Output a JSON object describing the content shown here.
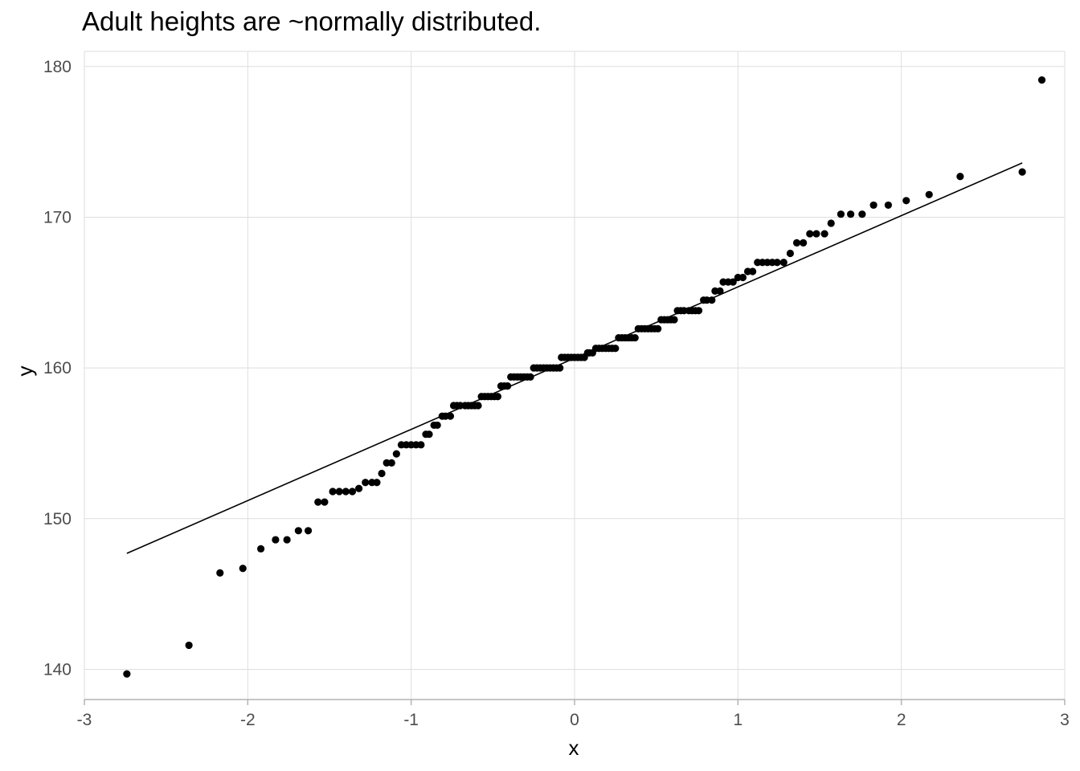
{
  "chart_data": {
    "type": "scatter",
    "title": "Adult heights are ~normally distributed.",
    "xlabel": "x",
    "ylabel": "y",
    "xlim": [
      -3,
      3
    ],
    "ylim": [
      138,
      181
    ],
    "grid": true,
    "x_ticks": [
      -3,
      -2,
      -1,
      0,
      1,
      2,
      3
    ],
    "y_ticks": [
      140,
      150,
      160,
      170,
      180
    ],
    "x_tick_labels": [
      "-3",
      "-2",
      "-1",
      "0",
      "1",
      "2",
      "3"
    ],
    "y_tick_labels": [
      "140",
      "150",
      "160",
      "170",
      "180"
    ],
    "colors": {
      "points": "#000000",
      "grid": "#dedede",
      "axis_text": "#4d4d4d"
    },
    "reference_line": {
      "x": [
        -2.74,
        2.74
      ],
      "y": [
        147.7,
        173.6
      ]
    },
    "points": [
      [
        -2.74,
        139.7
      ],
      [
        -2.36,
        141.6
      ],
      [
        -2.17,
        146.4
      ],
      [
        -2.03,
        146.7
      ],
      [
        -1.92,
        148.0
      ],
      [
        -1.83,
        148.6
      ],
      [
        -1.76,
        148.6
      ],
      [
        -1.69,
        149.2
      ],
      [
        -1.63,
        149.2
      ],
      [
        -1.57,
        151.1
      ],
      [
        -1.53,
        151.1
      ],
      [
        -1.48,
        151.8
      ],
      [
        -1.44,
        151.8
      ],
      [
        -1.4,
        151.8
      ],
      [
        -1.36,
        151.8
      ],
      [
        -1.32,
        152.0
      ],
      [
        -1.28,
        152.4
      ],
      [
        -1.24,
        152.4
      ],
      [
        -1.21,
        152.4
      ],
      [
        -1.18,
        153.0
      ],
      [
        -1.15,
        153.7
      ],
      [
        -1.12,
        153.7
      ],
      [
        -1.09,
        154.3
      ],
      [
        -1.06,
        154.9
      ],
      [
        -1.03,
        154.9
      ],
      [
        -1.0,
        154.9
      ],
      [
        -0.97,
        154.9
      ],
      [
        -0.94,
        154.9
      ],
      [
        -0.91,
        155.6
      ],
      [
        -0.89,
        155.6
      ],
      [
        -0.86,
        156.2
      ],
      [
        -0.84,
        156.2
      ],
      [
        -0.81,
        156.8
      ],
      [
        -0.79,
        156.8
      ],
      [
        -0.76,
        156.8
      ],
      [
        -0.74,
        157.5
      ],
      [
        -0.72,
        157.5
      ],
      [
        -0.7,
        157.5
      ],
      [
        -0.67,
        157.5
      ],
      [
        -0.65,
        157.5
      ],
      [
        -0.63,
        157.5
      ],
      [
        -0.61,
        157.5
      ],
      [
        -0.59,
        157.5
      ],
      [
        -0.57,
        158.1
      ],
      [
        -0.55,
        158.1
      ],
      [
        -0.53,
        158.1
      ],
      [
        -0.51,
        158.1
      ],
      [
        -0.49,
        158.1
      ],
      [
        -0.47,
        158.1
      ],
      [
        -0.45,
        158.8
      ],
      [
        -0.43,
        158.8
      ],
      [
        -0.41,
        158.8
      ],
      [
        -0.39,
        159.4
      ],
      [
        -0.37,
        159.4
      ],
      [
        -0.35,
        159.4
      ],
      [
        -0.33,
        159.4
      ],
      [
        -0.31,
        159.4
      ],
      [
        -0.29,
        159.4
      ],
      [
        -0.27,
        159.4
      ],
      [
        -0.25,
        160.0
      ],
      [
        -0.23,
        160.0
      ],
      [
        -0.21,
        160.0
      ],
      [
        -0.19,
        160.0
      ],
      [
        -0.17,
        160.0
      ],
      [
        -0.15,
        160.0
      ],
      [
        -0.13,
        160.0
      ],
      [
        -0.11,
        160.0
      ],
      [
        -0.09,
        160.0
      ],
      [
        -0.08,
        160.7
      ],
      [
        -0.06,
        160.7
      ],
      [
        -0.04,
        160.7
      ],
      [
        -0.02,
        160.7
      ],
      [
        0.0,
        160.7
      ],
      [
        0.02,
        160.7
      ],
      [
        0.04,
        160.7
      ],
      [
        0.06,
        160.7
      ],
      [
        0.08,
        161.0
      ],
      [
        0.09,
        161.0
      ],
      [
        0.11,
        161.0
      ],
      [
        0.13,
        161.3
      ],
      [
        0.15,
        161.3
      ],
      [
        0.17,
        161.3
      ],
      [
        0.19,
        161.3
      ],
      [
        0.21,
        161.3
      ],
      [
        0.23,
        161.3
      ],
      [
        0.25,
        161.3
      ],
      [
        0.27,
        162.0
      ],
      [
        0.29,
        162.0
      ],
      [
        0.31,
        162.0
      ],
      [
        0.33,
        162.0
      ],
      [
        0.35,
        162.0
      ],
      [
        0.37,
        162.0
      ],
      [
        0.39,
        162.6
      ],
      [
        0.41,
        162.6
      ],
      [
        0.43,
        162.6
      ],
      [
        0.45,
        162.6
      ],
      [
        0.47,
        162.6
      ],
      [
        0.49,
        162.6
      ],
      [
        0.51,
        162.6
      ],
      [
        0.53,
        163.2
      ],
      [
        0.55,
        163.2
      ],
      [
        0.57,
        163.2
      ],
      [
        0.59,
        163.2
      ],
      [
        0.61,
        163.2
      ],
      [
        0.63,
        163.8
      ],
      [
        0.65,
        163.8
      ],
      [
        0.67,
        163.8
      ],
      [
        0.7,
        163.8
      ],
      [
        0.72,
        163.8
      ],
      [
        0.74,
        163.8
      ],
      [
        0.76,
        163.8
      ],
      [
        0.79,
        164.5
      ],
      [
        0.81,
        164.5
      ],
      [
        0.84,
        164.5
      ],
      [
        0.86,
        165.1
      ],
      [
        0.89,
        165.1
      ],
      [
        0.91,
        165.7
      ],
      [
        0.94,
        165.7
      ],
      [
        0.97,
        165.7
      ],
      [
        1.0,
        166.0
      ],
      [
        1.03,
        166.0
      ],
      [
        1.06,
        166.4
      ],
      [
        1.09,
        166.4
      ],
      [
        1.12,
        167.0
      ],
      [
        1.15,
        167.0
      ],
      [
        1.18,
        167.0
      ],
      [
        1.21,
        167.0
      ],
      [
        1.24,
        167.0
      ],
      [
        1.28,
        167.0
      ],
      [
        1.32,
        167.6
      ],
      [
        1.36,
        168.3
      ],
      [
        1.4,
        168.3
      ],
      [
        1.44,
        168.9
      ],
      [
        1.48,
        168.9
      ],
      [
        1.53,
        168.9
      ],
      [
        1.57,
        169.6
      ],
      [
        1.63,
        170.2
      ],
      [
        1.69,
        170.2
      ],
      [
        1.76,
        170.2
      ],
      [
        1.83,
        170.8
      ],
      [
        1.92,
        170.8
      ],
      [
        2.03,
        171.1
      ],
      [
        2.17,
        171.5
      ],
      [
        2.36,
        172.7
      ],
      [
        2.74,
        173.0
      ],
      [
        2.86,
        179.1
      ]
    ]
  }
}
